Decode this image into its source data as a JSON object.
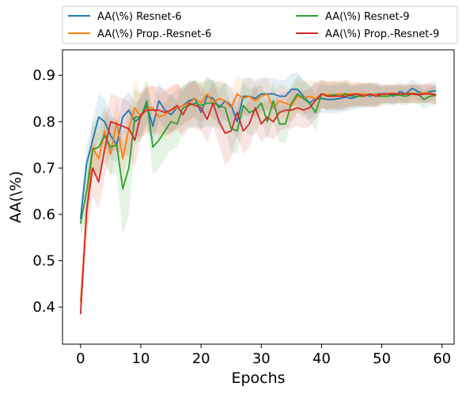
{
  "chart_data": {
    "type": "line",
    "xlabel": "Epochs",
    "ylabel": "AA(\\%)",
    "xlim": [
      -3,
      62
    ],
    "ylim": [
      0.32,
      0.955
    ],
    "xticks": [
      0,
      10,
      20,
      30,
      40,
      50,
      60
    ],
    "yticks": [
      0.4,
      0.5,
      0.6,
      0.7,
      0.8,
      0.9
    ],
    "grid": false,
    "legend_placement": "top, above plot, 2 columns",
    "x": [
      0,
      1,
      2,
      3,
      4,
      5,
      6,
      7,
      8,
      9,
      10,
      11,
      12,
      13,
      14,
      15,
      16,
      17,
      18,
      19,
      20,
      21,
      22,
      23,
      24,
      25,
      26,
      27,
      28,
      29,
      30,
      31,
      32,
      33,
      34,
      35,
      36,
      37,
      38,
      39,
      40,
      41,
      42,
      43,
      44,
      45,
      46,
      47,
      48,
      49,
      50,
      51,
      52,
      53,
      54,
      55,
      56,
      57,
      58,
      59
    ],
    "series": [
      {
        "name": "AA(\\%) Resnet-6",
        "color": "#1f77b4",
        "values": [
          0.59,
          0.71,
          0.76,
          0.81,
          0.8,
          0.77,
          0.75,
          0.81,
          0.825,
          0.8,
          0.81,
          0.835,
          0.79,
          0.845,
          0.825,
          0.815,
          0.83,
          0.835,
          0.845,
          0.85,
          0.82,
          0.855,
          0.85,
          0.83,
          0.845,
          0.835,
          0.8,
          0.855,
          0.855,
          0.85,
          0.86,
          0.86,
          0.86,
          0.855,
          0.855,
          0.87,
          0.87,
          0.855,
          0.84,
          0.85,
          0.85,
          0.848,
          0.848,
          0.85,
          0.853,
          0.85,
          0.855,
          0.86,
          0.855,
          0.86,
          0.86,
          0.86,
          0.855,
          0.865,
          0.86,
          0.872,
          0.865,
          0.86,
          0.865,
          0.867
        ],
        "band": [
          0.03,
          0.04,
          0.04,
          0.05,
          0.05,
          0.05,
          0.04,
          0.04,
          0.04,
          0.04,
          0.04,
          0.04,
          0.04,
          0.04,
          0.04,
          0.04,
          0.04,
          0.04,
          0.04,
          0.04,
          0.04,
          0.04,
          0.04,
          0.04,
          0.04,
          0.04,
          0.04,
          0.04,
          0.04,
          0.04,
          0.035,
          0.035,
          0.035,
          0.035,
          0.035,
          0.035,
          0.035,
          0.035,
          0.035,
          0.035,
          0.03,
          0.03,
          0.03,
          0.03,
          0.03,
          0.025,
          0.025,
          0.025,
          0.025,
          0.025,
          0.02,
          0.02,
          0.02,
          0.02,
          0.02,
          0.02,
          0.02,
          0.02,
          0.02,
          0.02
        ]
      },
      {
        "name": "AA(\\%) Prop.-Resnet-6",
        "color": "#ff7f0e",
        "values": [
          0.41,
          0.6,
          0.745,
          0.72,
          0.78,
          0.73,
          0.8,
          0.72,
          0.785,
          0.83,
          0.81,
          0.83,
          0.83,
          0.81,
          0.815,
          0.825,
          0.83,
          0.835,
          0.84,
          0.85,
          0.84,
          0.86,
          0.84,
          0.85,
          0.845,
          0.83,
          0.86,
          0.85,
          0.855,
          0.845,
          0.855,
          0.86,
          0.83,
          0.845,
          0.84,
          0.835,
          0.855,
          0.85,
          0.855,
          0.85,
          0.86,
          0.858,
          0.858,
          0.86,
          0.86,
          0.86,
          0.86,
          0.86,
          0.858,
          0.86,
          0.855,
          0.86,
          0.862,
          0.86,
          0.86,
          0.862,
          0.86,
          0.862,
          0.862,
          0.857
        ],
        "band": [
          0.03,
          0.05,
          0.05,
          0.05,
          0.05,
          0.05,
          0.05,
          0.05,
          0.05,
          0.06,
          0.05,
          0.05,
          0.05,
          0.05,
          0.05,
          0.05,
          0.05,
          0.04,
          0.04,
          0.04,
          0.04,
          0.04,
          0.04,
          0.04,
          0.04,
          0.04,
          0.04,
          0.04,
          0.04,
          0.04,
          0.035,
          0.035,
          0.035,
          0.035,
          0.035,
          0.035,
          0.035,
          0.035,
          0.035,
          0.035,
          0.03,
          0.03,
          0.03,
          0.03,
          0.03,
          0.025,
          0.025,
          0.025,
          0.025,
          0.025,
          0.02,
          0.02,
          0.02,
          0.02,
          0.02,
          0.02,
          0.02,
          0.02,
          0.02,
          0.02
        ]
      },
      {
        "name": "AA(\\%) Resnet-9",
        "color": "#2ca02c",
        "values": [
          0.58,
          0.65,
          0.74,
          0.745,
          0.77,
          0.745,
          0.75,
          0.655,
          0.7,
          0.81,
          0.81,
          0.845,
          0.745,
          0.76,
          0.78,
          0.8,
          0.795,
          0.83,
          0.835,
          0.84,
          0.835,
          0.84,
          0.84,
          0.835,
          0.83,
          0.785,
          0.78,
          0.835,
          0.82,
          0.825,
          0.84,
          0.8,
          0.845,
          0.795,
          0.795,
          0.84,
          0.86,
          0.85,
          0.84,
          0.82,
          0.86,
          0.855,
          0.858,
          0.855,
          0.86,
          0.855,
          0.855,
          0.855,
          0.86,
          0.855,
          0.855,
          0.855,
          0.858,
          0.857,
          0.855,
          0.86,
          0.86,
          0.848,
          0.855,
          0.857
        ],
        "band": [
          0.03,
          0.06,
          0.06,
          0.06,
          0.06,
          0.06,
          0.06,
          0.1,
          0.1,
          0.06,
          0.05,
          0.05,
          0.06,
          0.06,
          0.06,
          0.06,
          0.05,
          0.05,
          0.05,
          0.05,
          0.05,
          0.05,
          0.05,
          0.05,
          0.05,
          0.05,
          0.05,
          0.05,
          0.05,
          0.05,
          0.04,
          0.04,
          0.04,
          0.04,
          0.04,
          0.04,
          0.04,
          0.04,
          0.04,
          0.04,
          0.03,
          0.03,
          0.03,
          0.03,
          0.03,
          0.025,
          0.025,
          0.025,
          0.025,
          0.025,
          0.02,
          0.02,
          0.02,
          0.02,
          0.02,
          0.02,
          0.02,
          0.02,
          0.02,
          0.02
        ]
      },
      {
        "name": "AA(\\%) Prop.-Resnet-9",
        "color": "#d62728",
        "values": [
          0.385,
          0.61,
          0.7,
          0.67,
          0.74,
          0.8,
          0.795,
          0.79,
          0.785,
          0.76,
          0.815,
          0.825,
          0.825,
          0.825,
          0.82,
          0.825,
          0.835,
          0.815,
          0.84,
          0.835,
          0.83,
          0.805,
          0.84,
          0.8,
          0.775,
          0.78,
          0.82,
          0.78,
          0.795,
          0.83,
          0.795,
          0.81,
          0.8,
          0.82,
          0.825,
          0.825,
          0.83,
          0.825,
          0.83,
          0.845,
          0.86,
          0.855,
          0.855,
          0.855,
          0.855,
          0.858,
          0.86,
          0.855,
          0.86,
          0.855,
          0.86,
          0.86,
          0.86,
          0.86,
          0.86,
          0.86,
          0.858,
          0.86,
          0.86,
          0.858
        ],
        "band": [
          0.03,
          0.06,
          0.06,
          0.06,
          0.06,
          0.06,
          0.06,
          0.06,
          0.06,
          0.06,
          0.05,
          0.05,
          0.05,
          0.05,
          0.05,
          0.05,
          0.05,
          0.05,
          0.05,
          0.05,
          0.05,
          0.05,
          0.05,
          0.05,
          0.07,
          0.06,
          0.05,
          0.05,
          0.05,
          0.05,
          0.04,
          0.04,
          0.04,
          0.04,
          0.04,
          0.04,
          0.04,
          0.04,
          0.04,
          0.04,
          0.03,
          0.03,
          0.03,
          0.03,
          0.03,
          0.025,
          0.025,
          0.025,
          0.025,
          0.025,
          0.02,
          0.02,
          0.02,
          0.02,
          0.02,
          0.02,
          0.02,
          0.02,
          0.02,
          0.02
        ]
      }
    ]
  }
}
